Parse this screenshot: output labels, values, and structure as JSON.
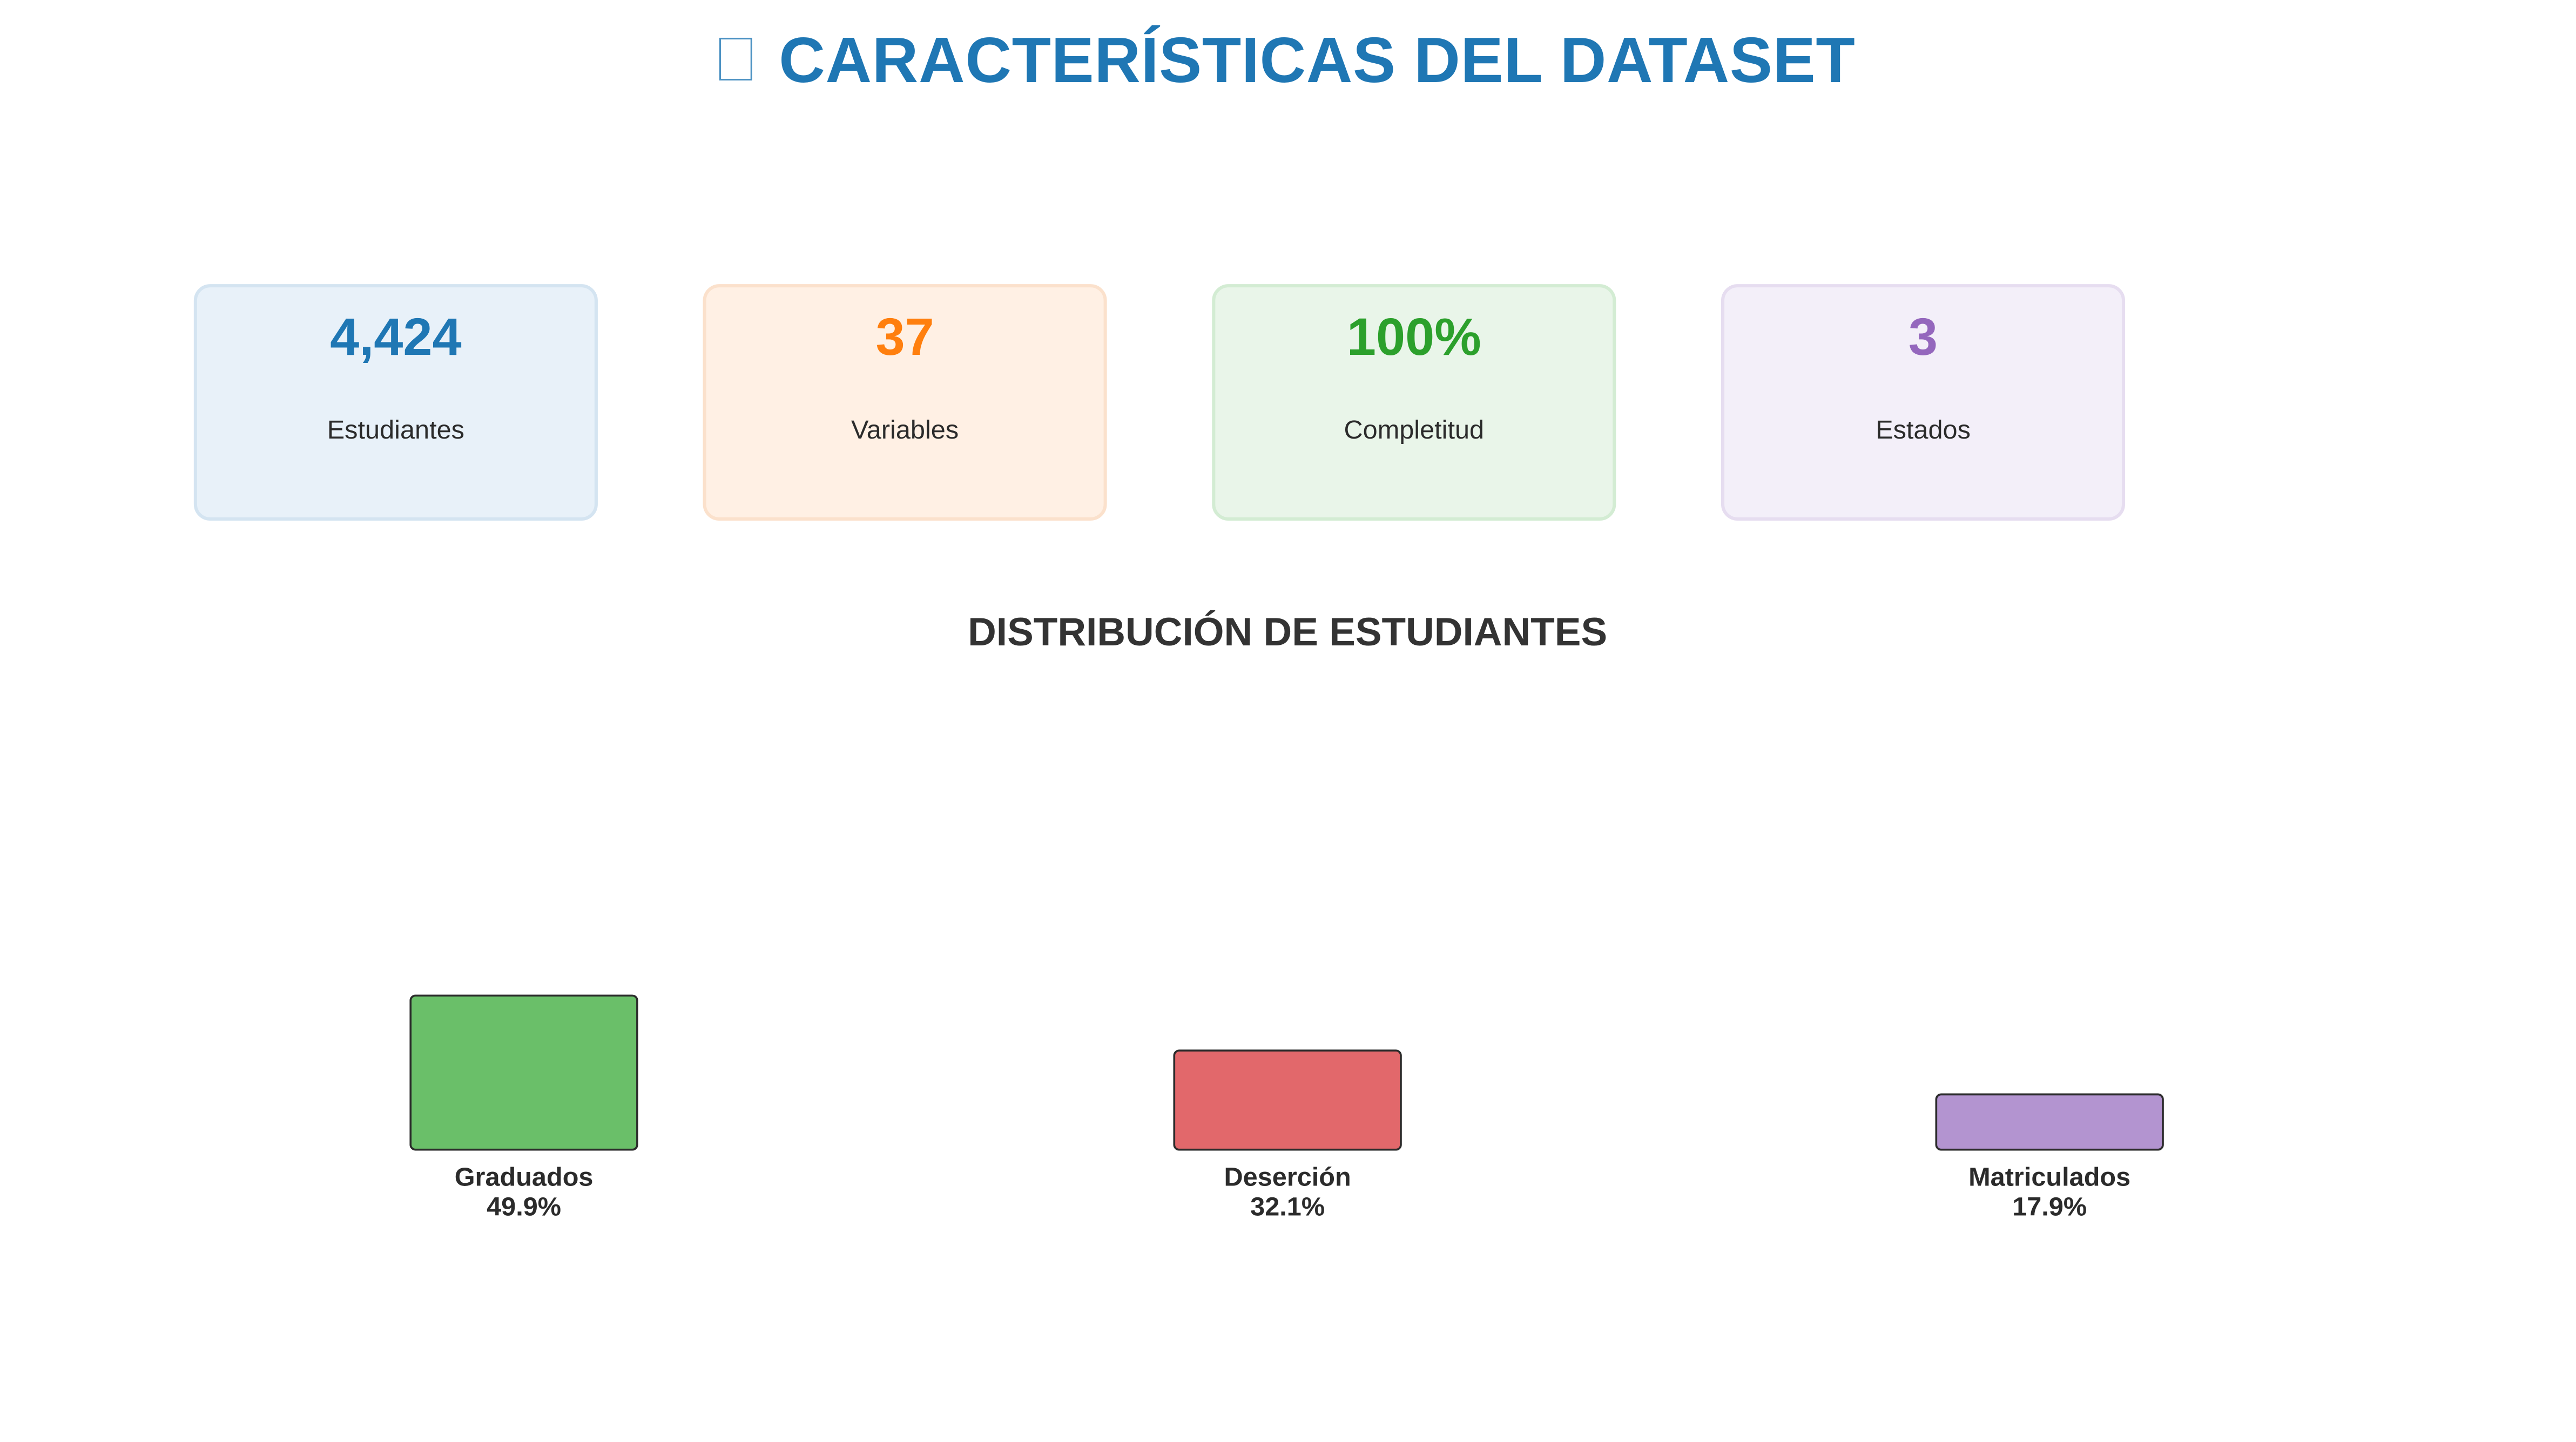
{
  "header": {
    "icon": "unrendered-emoji-box",
    "title": "CARACTERÍSTICAS DEL DATASET"
  },
  "cards": [
    {
      "value": "4,424",
      "label": "Estudiantes",
      "color": "#1f77b4",
      "bg": "#e8f1f9",
      "border": "#d4e4f1"
    },
    {
      "value": "37",
      "label": "Variables",
      "color": "#ff7f0e",
      "bg": "#fff0e4",
      "border": "#fbe1cc"
    },
    {
      "value": "100%",
      "label": "Completitud",
      "color": "#2ca02c",
      "bg": "#e9f5e9",
      "border": "#d3ecd3"
    },
    {
      "value": "3",
      "label": "Estados",
      "color": "#9467bd",
      "bg": "#f3eff9",
      "border": "#e6ddf0"
    }
  ],
  "chart_data": {
    "type": "bar",
    "title": "DISTRIBUCIÓN DE ESTUDIANTES",
    "categories": [
      "Graduados",
      "Deserción",
      "Matriculados"
    ],
    "values": [
      49.9,
      32.1,
      17.9
    ],
    "value_labels": [
      "49.9%",
      "32.1%",
      "17.9%"
    ],
    "unit": "%",
    "colors": [
      "#6abf69",
      "#e2686b",
      "#b394d0"
    ],
    "edge_color": "#2b2b2b",
    "axes_visible": false,
    "grid": false
  }
}
